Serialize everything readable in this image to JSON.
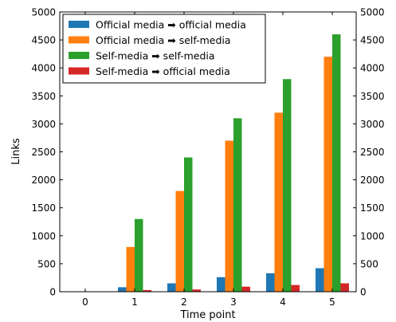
{
  "chart_data": {
    "type": "bar",
    "categories": [
      "0",
      "1",
      "2",
      "3",
      "4",
      "5"
    ],
    "xlabel": "Time point",
    "ylabel": "Links",
    "ylim": [
      0,
      5000
    ],
    "yticks": [
      0,
      500,
      1000,
      1500,
      2000,
      2500,
      3000,
      3500,
      4000,
      4500,
      5000
    ],
    "grid": false,
    "right_axis_ticks": true,
    "legend_position": "top-left",
    "series": [
      {
        "name": "Official media ➡ official media",
        "color": "#1f77b4",
        "values": [
          0,
          80,
          150,
          260,
          330,
          420
        ]
      },
      {
        "name": "Official media ➡ self-media",
        "color": "#ff7f0e",
        "values": [
          0,
          800,
          1800,
          2700,
          3200,
          4200
        ]
      },
      {
        "name": "Self-media ➡ self-media",
        "color": "#2ca02c",
        "values": [
          0,
          1300,
          2400,
          3100,
          3800,
          4600
        ]
      },
      {
        "name": "Self-media ➡ official media",
        "color": "#d62728",
        "values": [
          0,
          30,
          40,
          90,
          120,
          150
        ]
      }
    ]
  }
}
